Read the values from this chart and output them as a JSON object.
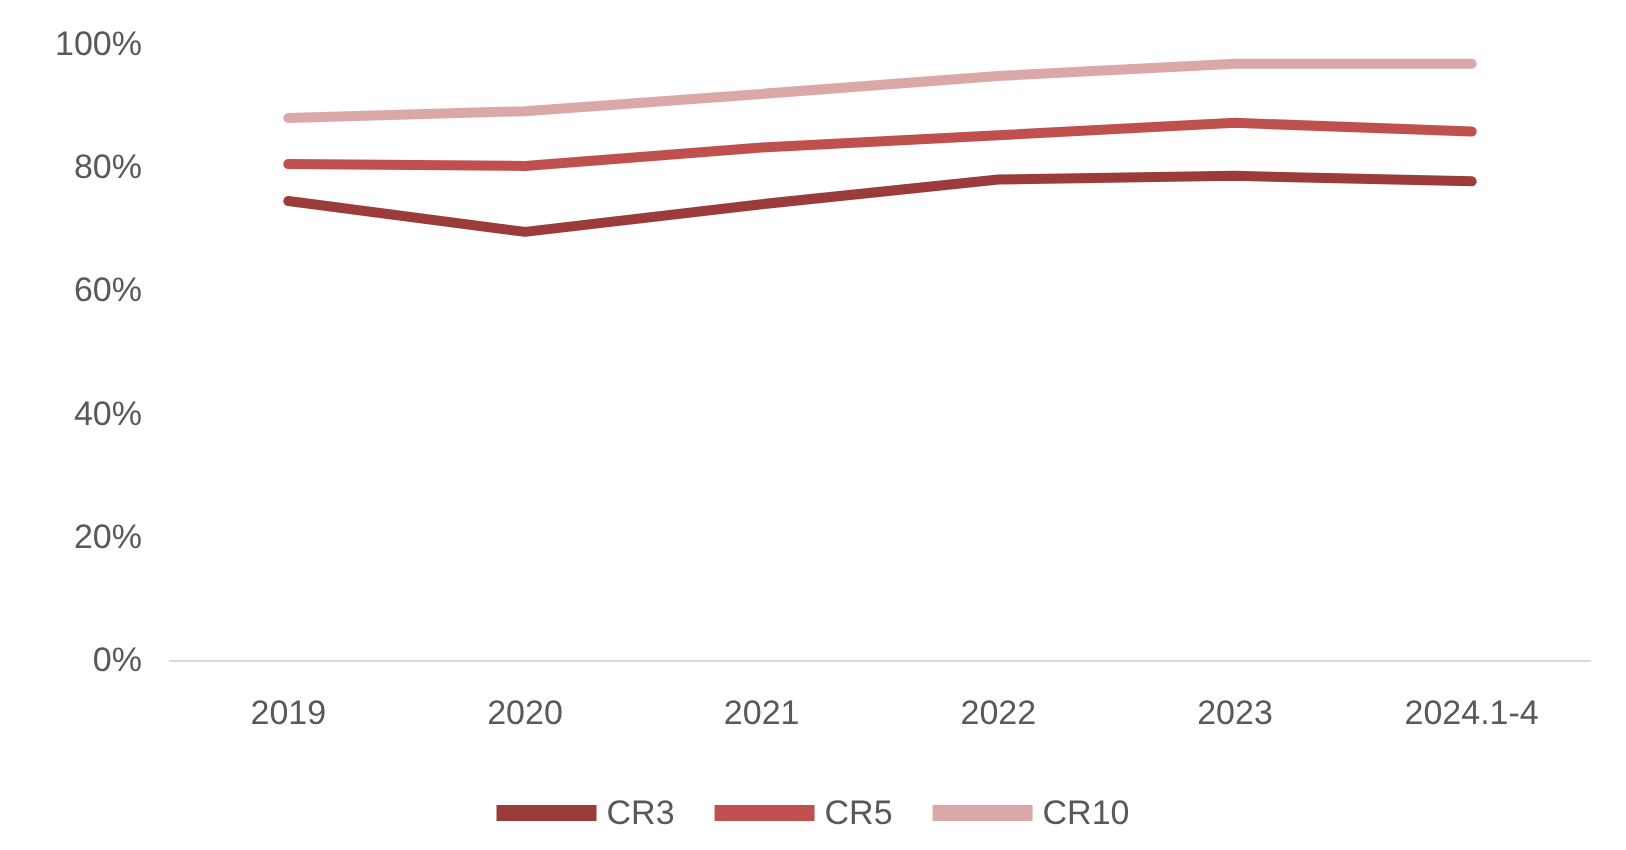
{
  "chart_data": {
    "type": "line",
    "categories": [
      "2019",
      "2020",
      "2021",
      "2022",
      "2023",
      "2024.1-4"
    ],
    "series": [
      {
        "name": "CR3",
        "color": "#9b3b3a",
        "values": [
          74.5,
          69.5,
          74,
          78,
          78.6,
          77.7
        ]
      },
      {
        "name": "CR5",
        "color": "#c0504d",
        "values": [
          80.5,
          80.2,
          83.2,
          85.2,
          87.2,
          85.8
        ]
      },
      {
        "name": "CR10",
        "color": "#d9a8a7",
        "values": [
          88,
          89.1,
          91.9,
          94.8,
          96.8,
          96.8
        ]
      }
    ],
    "ylim": [
      0,
      100
    ],
    "yticks": [
      {
        "value": 0,
        "label": "0%"
      },
      {
        "value": 20,
        "label": "20%"
      },
      {
        "value": 40,
        "label": "40%"
      },
      {
        "value": 60,
        "label": "60%"
      },
      {
        "value": 80,
        "label": "80%"
      },
      {
        "value": 100,
        "label": "100%"
      }
    ],
    "grid": false,
    "legend": "bottom",
    "marker": "none",
    "line_style": "solid"
  }
}
